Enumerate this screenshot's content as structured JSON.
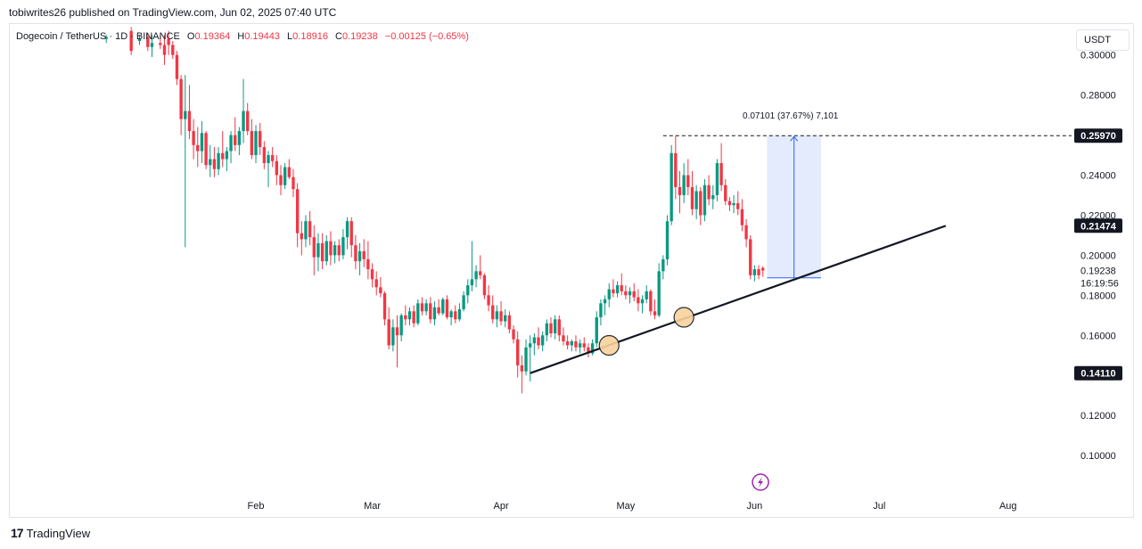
{
  "header": {
    "text": "tobiwrites26 published on TradingView.com, Jun 02, 2025 07:40 UTC"
  },
  "legend": {
    "symbol": "Dogecoin / TetherUS · 1D · BINANCE",
    "open_label": "O",
    "open": "0.19364",
    "high_label": "H",
    "high": "0.19443",
    "low_label": "L",
    "low": "0.18916",
    "close_label": "C",
    "close": "0.19238",
    "change": "−0.00125 (−0.65%)"
  },
  "currency_button": "USDT",
  "footer": {
    "brand": "TradingView",
    "logo_glyph": "17"
  },
  "colors": {
    "up": "#089981",
    "down": "#f23645",
    "measure_fill": "#dfe7fc",
    "measure_line": "#2962ff",
    "trendline": "#131722",
    "circle": "#f9d29c"
  },
  "chart_data": {
    "type": "candlestick",
    "title": "Dogecoin / TetherUS",
    "ylim": [
      0.08,
      0.315
    ],
    "y_ticks": [
      "0.30000",
      "0.28000",
      "0.24000",
      "0.22000",
      "0.20000",
      "0.18000",
      "0.16000",
      "0.12000",
      "0.10000"
    ],
    "y_tick_values": [
      0.3,
      0.28,
      0.24,
      0.22,
      0.2,
      0.18,
      0.16,
      0.12,
      0.1
    ],
    "x_ticks": [
      "Feb",
      "Mar",
      "Apr",
      "May",
      "Jun",
      "Jul",
      "Aug"
    ],
    "x_tick_days": [
      31,
      59,
      90,
      120,
      151,
      181,
      212
    ],
    "x_range_days": [
      -28,
      226
    ],
    "current_price_label": "0.19238",
    "countdown": "16:19:56",
    "price_labels": [
      {
        "text": "0.25970",
        "value": 0.2597
      },
      {
        "text": "0.21474",
        "value": 0.21474
      },
      {
        "text": "0.14110",
        "value": 0.1411
      }
    ],
    "measure": {
      "label": "0.07101 (37.67%) 7,101",
      "from": 0.1887,
      "to": 0.2597,
      "start_day": 154,
      "end_day": 167
    },
    "resistance_line": {
      "value": 0.2597,
      "start_day": 129
    },
    "trendline": {
      "start_day": 97,
      "start_value": 0.1411,
      "end_day": 197,
      "end_value": 0.2147
    },
    "touch_points": [
      {
        "day": 116,
        "value": 0.155
      },
      {
        "day": 134,
        "value": 0.169
      }
    ],
    "candles": [
      [
        -5,
        0.308,
        0.31,
        0.306,
        0.309
      ],
      [
        1,
        0.312,
        0.314,
        0.3,
        0.302
      ],
      [
        3,
        0.307,
        0.31,
        0.305,
        0.308
      ],
      [
        5,
        0.309,
        0.311,
        0.302,
        0.304
      ],
      [
        6,
        0.304,
        0.31,
        0.299,
        0.306
      ],
      [
        8,
        0.306,
        0.31,
        0.303,
        0.305
      ],
      [
        9,
        0.305,
        0.31,
        0.295,
        0.3
      ],
      [
        10,
        0.308,
        0.312,
        0.3,
        0.305
      ],
      [
        11,
        0.305,
        0.307,
        0.298,
        0.3
      ],
      [
        12,
        0.3,
        0.302,
        0.285,
        0.288
      ],
      [
        13,
        0.288,
        0.29,
        0.26,
        0.268
      ],
      [
        14,
        0.268,
        0.29,
        0.204,
        0.272
      ],
      [
        15,
        0.272,
        0.285,
        0.258,
        0.262
      ],
      [
        16,
        0.262,
        0.268,
        0.248,
        0.255
      ],
      [
        17,
        0.255,
        0.264,
        0.244,
        0.252
      ],
      [
        18,
        0.252,
        0.267,
        0.246,
        0.261
      ],
      [
        19,
        0.261,
        0.262,
        0.243,
        0.245
      ],
      [
        20,
        0.245,
        0.255,
        0.239,
        0.248
      ],
      [
        21,
        0.248,
        0.254,
        0.239,
        0.243
      ],
      [
        22,
        0.243,
        0.254,
        0.24,
        0.251
      ],
      [
        23,
        0.251,
        0.262,
        0.244,
        0.248
      ],
      [
        24,
        0.248,
        0.254,
        0.242,
        0.252
      ],
      [
        25,
        0.252,
        0.262,
        0.246,
        0.26
      ],
      [
        26,
        0.26,
        0.269,
        0.252,
        0.255
      ],
      [
        27,
        0.255,
        0.264,
        0.25,
        0.262
      ],
      [
        28,
        0.262,
        0.288,
        0.256,
        0.272
      ],
      [
        29,
        0.272,
        0.276,
        0.26,
        0.262
      ],
      [
        30,
        0.262,
        0.268,
        0.248,
        0.25
      ],
      [
        31,
        0.25,
        0.265,
        0.246,
        0.262
      ],
      [
        32,
        0.262,
        0.266,
        0.25,
        0.254
      ],
      [
        33,
        0.254,
        0.257,
        0.243,
        0.246
      ],
      [
        34,
        0.246,
        0.252,
        0.234,
        0.25
      ],
      [
        35,
        0.25,
        0.254,
        0.244,
        0.247
      ],
      [
        36,
        0.247,
        0.25,
        0.235,
        0.24
      ],
      [
        37,
        0.24,
        0.245,
        0.23,
        0.235
      ],
      [
        38,
        0.235,
        0.246,
        0.233,
        0.244
      ],
      [
        39,
        0.244,
        0.248,
        0.238,
        0.239
      ],
      [
        40,
        0.239,
        0.243,
        0.229,
        0.233
      ],
      [
        41,
        0.233,
        0.236,
        0.204,
        0.211
      ],
      [
        42,
        0.211,
        0.217,
        0.2,
        0.208
      ],
      [
        43,
        0.208,
        0.22,
        0.204,
        0.217
      ],
      [
        44,
        0.217,
        0.222,
        0.205,
        0.209
      ],
      [
        45,
        0.209,
        0.215,
        0.19,
        0.199
      ],
      [
        46,
        0.199,
        0.211,
        0.192,
        0.206
      ],
      [
        47,
        0.206,
        0.211,
        0.193,
        0.197
      ],
      [
        48,
        0.197,
        0.21,
        0.195,
        0.207
      ],
      [
        49,
        0.207,
        0.212,
        0.195,
        0.2
      ],
      [
        50,
        0.2,
        0.207,
        0.196,
        0.205
      ],
      [
        51,
        0.205,
        0.208,
        0.197,
        0.2
      ],
      [
        52,
        0.2,
        0.213,
        0.198,
        0.209
      ],
      [
        53,
        0.209,
        0.219,
        0.203,
        0.217
      ],
      [
        54,
        0.217,
        0.219,
        0.199,
        0.205
      ],
      [
        55,
        0.205,
        0.21,
        0.193,
        0.197
      ],
      [
        56,
        0.197,
        0.206,
        0.19,
        0.202
      ],
      [
        57,
        0.202,
        0.208,
        0.194,
        0.198
      ],
      [
        58,
        0.198,
        0.207,
        0.188,
        0.193
      ],
      [
        59,
        0.193,
        0.196,
        0.184,
        0.188
      ],
      [
        60,
        0.188,
        0.192,
        0.18,
        0.184
      ],
      [
        61,
        0.184,
        0.189,
        0.179,
        0.181
      ],
      [
        62,
        0.181,
        0.182,
        0.165,
        0.168
      ],
      [
        63,
        0.168,
        0.174,
        0.153,
        0.155
      ],
      [
        64,
        0.155,
        0.168,
        0.152,
        0.164
      ],
      [
        65,
        0.164,
        0.17,
        0.144,
        0.16
      ],
      [
        66,
        0.16,
        0.171,
        0.157,
        0.17
      ],
      [
        67,
        0.17,
        0.175,
        0.165,
        0.168
      ],
      [
        68,
        0.168,
        0.174,
        0.165,
        0.172
      ],
      [
        69,
        0.172,
        0.175,
        0.164,
        0.166
      ],
      [
        70,
        0.166,
        0.178,
        0.165,
        0.176
      ],
      [
        71,
        0.176,
        0.179,
        0.17,
        0.172
      ],
      [
        72,
        0.172,
        0.178,
        0.17,
        0.176
      ],
      [
        73,
        0.176,
        0.179,
        0.166,
        0.168
      ],
      [
        74,
        0.168,
        0.177,
        0.165,
        0.174
      ],
      [
        75,
        0.174,
        0.178,
        0.17,
        0.171
      ],
      [
        76,
        0.171,
        0.179,
        0.17,
        0.178
      ],
      [
        77,
        0.178,
        0.18,
        0.168,
        0.169
      ],
      [
        78,
        0.169,
        0.173,
        0.165,
        0.172
      ],
      [
        79,
        0.172,
        0.175,
        0.166,
        0.168
      ],
      [
        80,
        0.168,
        0.176,
        0.167,
        0.173
      ],
      [
        81,
        0.173,
        0.182,
        0.172,
        0.18
      ],
      [
        82,
        0.18,
        0.188,
        0.176,
        0.185
      ],
      [
        83,
        0.185,
        0.207,
        0.182,
        0.188
      ],
      [
        84,
        0.188,
        0.195,
        0.184,
        0.192
      ],
      [
        85,
        0.192,
        0.2,
        0.188,
        0.19
      ],
      [
        86,
        0.19,
        0.191,
        0.178,
        0.18
      ],
      [
        87,
        0.18,
        0.185,
        0.172,
        0.175
      ],
      [
        88,
        0.175,
        0.18,
        0.166,
        0.168
      ],
      [
        89,
        0.168,
        0.175,
        0.164,
        0.172
      ],
      [
        90,
        0.172,
        0.177,
        0.165,
        0.167
      ],
      [
        91,
        0.167,
        0.173,
        0.164,
        0.17
      ],
      [
        92,
        0.17,
        0.172,
        0.161,
        0.163
      ],
      [
        93,
        0.163,
        0.165,
        0.156,
        0.158
      ],
      [
        94,
        0.158,
        0.162,
        0.139,
        0.145
      ],
      [
        95,
        0.145,
        0.15,
        0.131,
        0.142
      ],
      [
        96,
        0.142,
        0.158,
        0.14,
        0.154
      ],
      [
        97,
        0.154,
        0.16,
        0.137,
        0.156
      ],
      [
        98,
        0.156,
        0.161,
        0.15,
        0.159
      ],
      [
        99,
        0.159,
        0.164,
        0.153,
        0.155
      ],
      [
        100,
        0.155,
        0.162,
        0.152,
        0.16
      ],
      [
        101,
        0.16,
        0.168,
        0.157,
        0.166
      ],
      [
        102,
        0.166,
        0.169,
        0.159,
        0.161
      ],
      [
        103,
        0.161,
        0.17,
        0.158,
        0.168
      ],
      [
        104,
        0.168,
        0.17,
        0.157,
        0.16
      ],
      [
        105,
        0.16,
        0.164,
        0.155,
        0.157
      ],
      [
        106,
        0.157,
        0.16,
        0.153,
        0.155
      ],
      [
        107,
        0.155,
        0.158,
        0.152,
        0.157
      ],
      [
        108,
        0.157,
        0.16,
        0.152,
        0.154
      ],
      [
        109,
        0.154,
        0.158,
        0.151,
        0.156
      ],
      [
        110,
        0.156,
        0.159,
        0.152,
        0.154
      ],
      [
        111,
        0.154,
        0.156,
        0.149,
        0.151
      ],
      [
        112,
        0.151,
        0.158,
        0.15,
        0.156
      ],
      [
        113,
        0.156,
        0.172,
        0.154,
        0.169
      ],
      [
        114,
        0.169,
        0.178,
        0.165,
        0.176
      ],
      [
        115,
        0.176,
        0.18,
        0.17,
        0.178
      ],
      [
        116,
        0.178,
        0.186,
        0.174,
        0.183
      ],
      [
        117,
        0.183,
        0.188,
        0.179,
        0.181
      ],
      [
        118,
        0.181,
        0.187,
        0.179,
        0.185
      ],
      [
        119,
        0.185,
        0.191,
        0.18,
        0.182
      ],
      [
        120,
        0.182,
        0.185,
        0.178,
        0.18
      ],
      [
        121,
        0.18,
        0.184,
        0.176,
        0.182
      ],
      [
        122,
        0.182,
        0.186,
        0.177,
        0.179
      ],
      [
        123,
        0.179,
        0.183,
        0.172,
        0.176
      ],
      [
        124,
        0.176,
        0.18,
        0.171,
        0.178
      ],
      [
        125,
        0.178,
        0.185,
        0.176,
        0.182
      ],
      [
        126,
        0.182,
        0.183,
        0.17,
        0.172
      ],
      [
        127,
        0.172,
        0.178,
        0.168,
        0.17
      ],
      [
        128,
        0.17,
        0.196,
        0.169,
        0.192
      ],
      [
        129,
        0.192,
        0.2,
        0.188,
        0.198
      ],
      [
        130,
        0.198,
        0.22,
        0.195,
        0.217
      ],
      [
        131,
        0.217,
        0.255,
        0.215,
        0.251
      ],
      [
        132,
        0.251,
        0.2597,
        0.228,
        0.234
      ],
      [
        133,
        0.234,
        0.242,
        0.221,
        0.23
      ],
      [
        134,
        0.23,
        0.246,
        0.226,
        0.24
      ],
      [
        135,
        0.24,
        0.248,
        0.23,
        0.234
      ],
      [
        136,
        0.234,
        0.242,
        0.22,
        0.223
      ],
      [
        137,
        0.223,
        0.235,
        0.218,
        0.232
      ],
      [
        138,
        0.232,
        0.234,
        0.215,
        0.22
      ],
      [
        139,
        0.22,
        0.238,
        0.217,
        0.235
      ],
      [
        140,
        0.235,
        0.24,
        0.225,
        0.228
      ],
      [
        141,
        0.228,
        0.235,
        0.223,
        0.23
      ],
      [
        142,
        0.23,
        0.248,
        0.227,
        0.246
      ],
      [
        143,
        0.246,
        0.256,
        0.232,
        0.235
      ],
      [
        144,
        0.235,
        0.238,
        0.225,
        0.227
      ],
      [
        145,
        0.227,
        0.229,
        0.222,
        0.225
      ],
      [
        146,
        0.225,
        0.23,
        0.221,
        0.226
      ],
      [
        147,
        0.226,
        0.232,
        0.22,
        0.223
      ],
      [
        148,
        0.223,
        0.228,
        0.212,
        0.215
      ],
      [
        149,
        0.215,
        0.218,
        0.204,
        0.208
      ],
      [
        150,
        0.208,
        0.21,
        0.188,
        0.19
      ],
      [
        151,
        0.19,
        0.195,
        0.187,
        0.193
      ],
      [
        152,
        0.193,
        0.195,
        0.188,
        0.19
      ],
      [
        153,
        0.19364,
        0.19443,
        0.18916,
        0.19238
      ]
    ]
  }
}
